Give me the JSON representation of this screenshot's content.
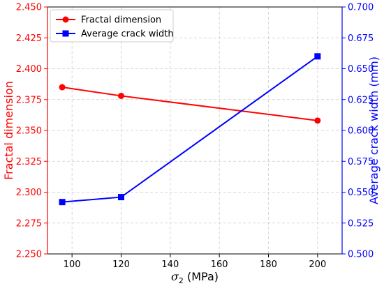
{
  "chart_data": {
    "type": "line",
    "xlabel_symbol": "σ",
    "xlabel_subscript": "2",
    "xlabel_unit": " (MPa)",
    "x_ticks": [
      100,
      120,
      140,
      160,
      180,
      200
    ],
    "x_tick_labels": [
      "100",
      "120",
      "140",
      "160",
      "180",
      "200"
    ],
    "xlim": [
      90,
      210
    ],
    "y_left": {
      "label": "Fractal dimension",
      "ylim": [
        2.25,
        2.45
      ],
      "ticks": [
        2.25,
        2.275,
        2.3,
        2.325,
        2.35,
        2.375,
        2.4,
        2.425,
        2.45
      ],
      "tick_labels": [
        "2.250",
        "2.275",
        "2.300",
        "2.325",
        "2.350",
        "2.375",
        "2.400",
        "2.425",
        "2.450"
      ],
      "color": "#ff0000"
    },
    "y_right": {
      "label": "Average crack width (mm)",
      "ylim": [
        0.5,
        0.7
      ],
      "ticks": [
        0.5,
        0.525,
        0.55,
        0.575,
        0.6,
        0.625,
        0.65,
        0.675,
        0.7
      ],
      "tick_labels": [
        "0.500",
        "0.525",
        "0.550",
        "0.575",
        "0.600",
        "0.625",
        "0.650",
        "0.675",
        "0.700"
      ],
      "color": "#0000ff"
    },
    "series": [
      {
        "name": "Fractal dimension",
        "axis": "left",
        "marker": "circle",
        "color": "#ff0000",
        "x": [
          96,
          120,
          200
        ],
        "y": [
          2.385,
          2.378,
          2.358
        ]
      },
      {
        "name": "Average crack width",
        "axis": "right",
        "marker": "square",
        "color": "#0000ff",
        "x": [
          96,
          120,
          200
        ],
        "y": [
          0.542,
          0.546,
          0.66
        ]
      }
    ],
    "grid": true,
    "legend_position": "top-left"
  }
}
